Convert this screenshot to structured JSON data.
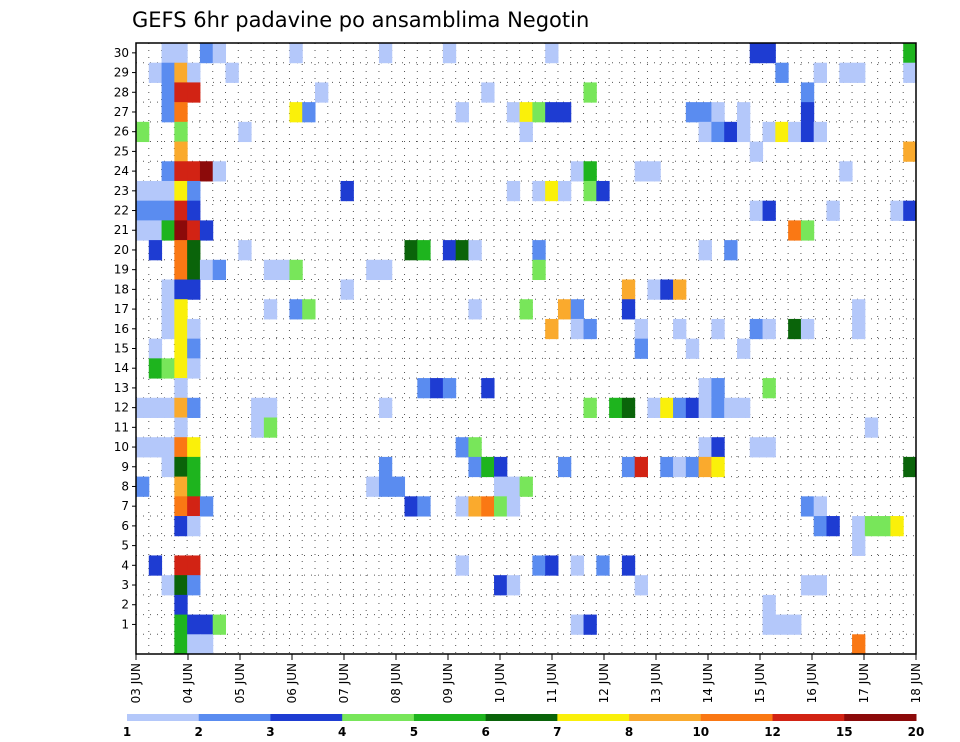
{
  "chart_data": {
    "type": "heatmap",
    "title": "GEFS 6hr padavine po ansamblima Negotin",
    "x_tick_labels": [
      "03 JUN",
      "04 JUN",
      "05 JUN",
      "06 JUN",
      "07 JUN",
      "08 JUN",
      "09 JUN",
      "10 JUN",
      "11 JUN",
      "12 JUN",
      "13 JUN",
      "14 JUN",
      "15 JUN",
      "16 JUN",
      "17 JUN",
      "18 JUN"
    ],
    "y_tick_labels": [
      "1",
      "2",
      "3",
      "4",
      "5",
      "6",
      "7",
      "8",
      "9",
      "10",
      "11",
      "12",
      "13",
      "14",
      "15",
      "16",
      "17",
      "18",
      "19",
      "20",
      "21",
      "22",
      "23",
      "24",
      "25",
      "26",
      "27",
      "28",
      "29",
      "30"
    ],
    "x_steps": 61,
    "y_members": 31,
    "colorbar": {
      "labels": [
        "1",
        "2",
        "3",
        "4",
        "5",
        "6",
        "7",
        "8",
        "10",
        "12",
        "15",
        "20"
      ],
      "colors": [
        "#b4c8fa",
        "#5a8cf0",
        "#1e3cd2",
        "#78e65a",
        "#1eb41e",
        "#0a640a",
        "#faf00a",
        "#faaa2d",
        "#fa7814",
        "#d22314",
        "#8c0a0a"
      ]
    },
    "cells": [
      [
        30,
        2,
        1
      ],
      [
        30,
        3,
        1
      ],
      [
        30,
        5,
        2
      ],
      [
        30,
        6,
        1
      ],
      [
        30,
        12,
        1
      ],
      [
        30,
        19,
        1
      ],
      [
        30,
        24,
        1
      ],
      [
        30,
        32,
        1
      ],
      [
        30,
        48,
        3
      ],
      [
        30,
        49,
        3
      ],
      [
        30,
        60,
        5
      ],
      [
        29,
        1,
        1
      ],
      [
        29,
        2,
        2
      ],
      [
        29,
        3,
        8
      ],
      [
        29,
        4,
        1
      ],
      [
        29,
        7,
        1
      ],
      [
        29,
        50,
        2
      ],
      [
        29,
        53,
        1
      ],
      [
        29,
        55,
        1
      ],
      [
        29,
        56,
        1
      ],
      [
        29,
        60,
        1
      ],
      [
        28,
        2,
        2
      ],
      [
        28,
        3,
        10
      ],
      [
        28,
        4,
        10
      ],
      [
        28,
        14,
        1
      ],
      [
        28,
        27,
        1
      ],
      [
        28,
        35,
        4
      ],
      [
        28,
        52,
        2
      ],
      [
        27,
        2,
        2
      ],
      [
        27,
        3,
        9
      ],
      [
        27,
        12,
        7
      ],
      [
        27,
        13,
        2
      ],
      [
        27,
        25,
        1
      ],
      [
        27,
        29,
        1
      ],
      [
        27,
        30,
        7
      ],
      [
        27,
        31,
        4
      ],
      [
        27,
        32,
        3
      ],
      [
        27,
        33,
        3
      ],
      [
        27,
        43,
        2
      ],
      [
        27,
        44,
        2
      ],
      [
        27,
        45,
        1
      ],
      [
        27,
        47,
        1
      ],
      [
        27,
        52,
        3
      ],
      [
        26,
        0,
        4
      ],
      [
        26,
        3,
        4
      ],
      [
        26,
        8,
        1
      ],
      [
        26,
        30,
        1
      ],
      [
        26,
        44,
        1
      ],
      [
        26,
        45,
        2
      ],
      [
        26,
        46,
        3
      ],
      [
        26,
        47,
        1
      ],
      [
        26,
        49,
        1
      ],
      [
        26,
        50,
        7
      ],
      [
        26,
        51,
        1
      ],
      [
        26,
        52,
        3
      ],
      [
        26,
        53,
        1
      ],
      [
        25,
        3,
        8
      ],
      [
        25,
        48,
        1
      ],
      [
        25,
        60,
        8
      ],
      [
        24,
        2,
        2
      ],
      [
        24,
        3,
        10
      ],
      [
        24,
        4,
        10
      ],
      [
        24,
        5,
        11
      ],
      [
        24,
        6,
        1
      ],
      [
        24,
        34,
        1
      ],
      [
        24,
        35,
        5
      ],
      [
        24,
        39,
        1
      ],
      [
        24,
        40,
        1
      ],
      [
        24,
        55,
        1
      ],
      [
        23,
        0,
        1
      ],
      [
        23,
        1,
        1
      ],
      [
        23,
        2,
        1
      ],
      [
        23,
        3,
        7
      ],
      [
        23,
        4,
        2
      ],
      [
        23,
        16,
        3
      ],
      [
        23,
        29,
        1
      ],
      [
        23,
        31,
        1
      ],
      [
        23,
        32,
        7
      ],
      [
        23,
        33,
        1
      ],
      [
        23,
        35,
        4
      ],
      [
        23,
        36,
        3
      ],
      [
        22,
        0,
        2
      ],
      [
        22,
        1,
        2
      ],
      [
        22,
        2,
        2
      ],
      [
        22,
        3,
        10
      ],
      [
        22,
        4,
        3
      ],
      [
        22,
        48,
        1
      ],
      [
        22,
        49,
        3
      ],
      [
        22,
        54,
        1
      ],
      [
        22,
        59,
        1
      ],
      [
        22,
        60,
        3
      ],
      [
        21,
        0,
        1
      ],
      [
        21,
        1,
        1
      ],
      [
        21,
        2,
        5
      ],
      [
        21,
        3,
        11
      ],
      [
        21,
        4,
        10
      ],
      [
        21,
        5,
        3
      ],
      [
        21,
        51,
        9
      ],
      [
        21,
        52,
        4
      ],
      [
        20,
        1,
        3
      ],
      [
        20,
        3,
        9
      ],
      [
        20,
        4,
        6
      ],
      [
        20,
        8,
        1
      ],
      [
        20,
        21,
        6
      ],
      [
        20,
        22,
        5
      ],
      [
        20,
        24,
        3
      ],
      [
        20,
        25,
        6
      ],
      [
        20,
        26,
        1
      ],
      [
        20,
        31,
        2
      ],
      [
        20,
        44,
        1
      ],
      [
        20,
        46,
        2
      ],
      [
        19,
        3,
        9
      ],
      [
        19,
        4,
        6
      ],
      [
        19,
        5,
        1
      ],
      [
        19,
        6,
        2
      ],
      [
        19,
        10,
        1
      ],
      [
        19,
        11,
        1
      ],
      [
        19,
        12,
        4
      ],
      [
        19,
        18,
        1
      ],
      [
        19,
        19,
        1
      ],
      [
        19,
        31,
        4
      ],
      [
        18,
        2,
        1
      ],
      [
        18,
        3,
        3
      ],
      [
        18,
        4,
        3
      ],
      [
        18,
        16,
        1
      ],
      [
        18,
        38,
        8
      ],
      [
        18,
        40,
        1
      ],
      [
        18,
        41,
        3
      ],
      [
        18,
        42,
        8
      ],
      [
        17,
        2,
        1
      ],
      [
        17,
        3,
        7
      ],
      [
        17,
        10,
        1
      ],
      [
        17,
        12,
        2
      ],
      [
        17,
        13,
        4
      ],
      [
        17,
        26,
        1
      ],
      [
        17,
        30,
        4
      ],
      [
        17,
        33,
        8
      ],
      [
        17,
        34,
        2
      ],
      [
        17,
        38,
        3
      ],
      [
        17,
        56,
        1
      ],
      [
        16,
        2,
        1
      ],
      [
        16,
        3,
        7
      ],
      [
        16,
        4,
        1
      ],
      [
        16,
        32,
        8
      ],
      [
        16,
        34,
        1
      ],
      [
        16,
        35,
        2
      ],
      [
        16,
        39,
        1
      ],
      [
        16,
        42,
        1
      ],
      [
        16,
        45,
        1
      ],
      [
        16,
        48,
        2
      ],
      [
        16,
        49,
        1
      ],
      [
        16,
        51,
        6
      ],
      [
        16,
        52,
        1
      ],
      [
        16,
        56,
        1
      ],
      [
        15,
        1,
        1
      ],
      [
        15,
        3,
        7
      ],
      [
        15,
        4,
        2
      ],
      [
        15,
        39,
        2
      ],
      [
        15,
        43,
        1
      ],
      [
        15,
        47,
        1
      ],
      [
        14,
        1,
        5
      ],
      [
        14,
        2,
        4
      ],
      [
        14,
        3,
        7
      ],
      [
        14,
        4,
        1
      ],
      [
        13,
        3,
        1
      ],
      [
        13,
        22,
        2
      ],
      [
        13,
        23,
        3
      ],
      [
        13,
        24,
        2
      ],
      [
        13,
        27,
        3
      ],
      [
        13,
        44,
        1
      ],
      [
        13,
        45,
        2
      ],
      [
        13,
        49,
        4
      ],
      [
        12,
        0,
        1
      ],
      [
        12,
        1,
        1
      ],
      [
        12,
        2,
        1
      ],
      [
        12,
        3,
        8
      ],
      [
        12,
        4,
        2
      ],
      [
        12,
        9,
        1
      ],
      [
        12,
        10,
        1
      ],
      [
        12,
        19,
        1
      ],
      [
        12,
        35,
        4
      ],
      [
        12,
        37,
        5
      ],
      [
        12,
        38,
        6
      ],
      [
        12,
        40,
        1
      ],
      [
        12,
        41,
        7
      ],
      [
        12,
        42,
        2
      ],
      [
        12,
        43,
        3
      ],
      [
        12,
        44,
        1
      ],
      [
        12,
        45,
        2
      ],
      [
        12,
        46,
        1
      ],
      [
        12,
        47,
        1
      ],
      [
        11,
        3,
        1
      ],
      [
        11,
        9,
        1
      ],
      [
        11,
        10,
        4
      ],
      [
        11,
        57,
        1
      ],
      [
        10,
        0,
        1
      ],
      [
        10,
        1,
        1
      ],
      [
        10,
        2,
        1
      ],
      [
        10,
        3,
        9
      ],
      [
        10,
        4,
        7
      ],
      [
        10,
        25,
        2
      ],
      [
        10,
        26,
        4
      ],
      [
        10,
        44,
        1
      ],
      [
        10,
        45,
        3
      ],
      [
        10,
        48,
        1
      ],
      [
        10,
        49,
        1
      ],
      [
        9,
        2,
        1
      ],
      [
        9,
        3,
        6
      ],
      [
        9,
        4,
        5
      ],
      [
        9,
        19,
        2
      ],
      [
        9,
        26,
        2
      ],
      [
        9,
        27,
        5
      ],
      [
        9,
        28,
        3
      ],
      [
        9,
        33,
        2
      ],
      [
        9,
        38,
        2
      ],
      [
        9,
        39,
        10
      ],
      [
        9,
        41,
        2
      ],
      [
        9,
        42,
        1
      ],
      [
        9,
        43,
        2
      ],
      [
        9,
        44,
        8
      ],
      [
        9,
        45,
        7
      ],
      [
        9,
        60,
        6
      ],
      [
        8,
        0,
        2
      ],
      [
        8,
        3,
        8
      ],
      [
        8,
        4,
        5
      ],
      [
        8,
        18,
        1
      ],
      [
        8,
        19,
        2
      ],
      [
        8,
        20,
        2
      ],
      [
        8,
        28,
        1
      ],
      [
        8,
        29,
        1
      ],
      [
        8,
        30,
        4
      ],
      [
        7,
        3,
        9
      ],
      [
        7,
        4,
        10
      ],
      [
        7,
        5,
        2
      ],
      [
        7,
        21,
        3
      ],
      [
        7,
        22,
        2
      ],
      [
        7,
        25,
        1
      ],
      [
        7,
        26,
        8
      ],
      [
        7,
        27,
        9
      ],
      [
        7,
        28,
        4
      ],
      [
        7,
        29,
        1
      ],
      [
        7,
        52,
        2
      ],
      [
        7,
        53,
        1
      ],
      [
        6,
        3,
        3
      ],
      [
        6,
        4,
        1
      ],
      [
        6,
        53,
        2
      ],
      [
        6,
        54,
        3
      ],
      [
        6,
        56,
        1
      ],
      [
        6,
        57,
        4
      ],
      [
        6,
        58,
        4
      ],
      [
        6,
        59,
        7
      ],
      [
        5,
        56,
        1
      ],
      [
        4,
        1,
        3
      ],
      [
        4,
        3,
        10
      ],
      [
        4,
        4,
        10
      ],
      [
        4,
        25,
        1
      ],
      [
        4,
        31,
        2
      ],
      [
        4,
        32,
        3
      ],
      [
        4,
        34,
        1
      ],
      [
        4,
        36,
        2
      ],
      [
        4,
        38,
        3
      ],
      [
        3,
        2,
        1
      ],
      [
        3,
        3,
        6
      ],
      [
        3,
        4,
        2
      ],
      [
        3,
        28,
        3
      ],
      [
        3,
        29,
        1
      ],
      [
        3,
        39,
        1
      ],
      [
        3,
        52,
        1
      ],
      [
        3,
        53,
        1
      ],
      [
        2,
        3,
        3
      ],
      [
        2,
        49,
        1
      ],
      [
        1,
        3,
        5
      ],
      [
        1,
        4,
        3
      ],
      [
        1,
        5,
        3
      ],
      [
        1,
        6,
        4
      ],
      [
        1,
        34,
        1
      ],
      [
        1,
        35,
        3
      ],
      [
        1,
        49,
        1
      ],
      [
        1,
        50,
        1
      ],
      [
        1,
        51,
        1
      ],
      [
        0,
        3,
        5
      ],
      [
        0,
        4,
        1
      ],
      [
        0,
        5,
        1
      ],
      [
        0,
        56,
        9
      ]
    ]
  }
}
